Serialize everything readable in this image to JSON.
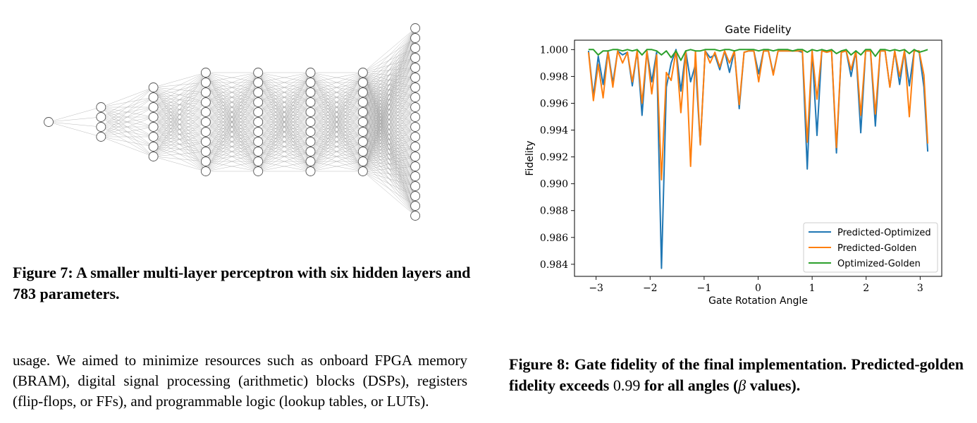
{
  "network_diagram": {
    "layers": [
      1,
      4,
      8,
      11,
      11,
      11,
      11,
      20
    ]
  },
  "figure7": {
    "caption": "Figure 7: A smaller multi-layer perceptron with six hidden layers and 783 parameters."
  },
  "body_text": "usage. We aimed to minimize resources such as onboard FPGA memory (BRAM), digital signal processing (arithmetic) blocks (DSPs), registers (flip-flops, or FFs), and programmable logic (lookup tables, or LUTs).",
  "figure8": {
    "caption_part1": "Figure 8: Gate fidelity of the final implementation. Predicted-golden fidelity exceeds ",
    "caption_value": "0.99",
    "caption_part2": " for all angles (",
    "caption_symbol": "β",
    "caption_part3": " values)."
  },
  "chart_data": {
    "type": "line",
    "title": "Gate Fidelity",
    "xlabel": "Gate Rotation Angle",
    "ylabel": "Fidelity",
    "xlim": [
      -3.4,
      3.4
    ],
    "ylim": [
      0.9831,
      1.0007
    ],
    "xticks": [
      -3,
      -2,
      -1,
      0,
      1,
      2,
      3
    ],
    "xtick_labels": [
      "−3",
      "−2",
      "−1",
      "0",
      "1",
      "2",
      "3"
    ],
    "yticks": [
      0.984,
      0.986,
      0.988,
      0.99,
      0.992,
      0.994,
      0.996,
      0.998,
      1.0
    ],
    "ytick_labels": [
      "0.984",
      "0.986",
      "0.988",
      "0.990",
      "0.992",
      "0.994",
      "0.996",
      "0.998",
      "1.000"
    ],
    "legend_position": "lower-right",
    "x": [
      -3.14,
      -3.05,
      -2.96,
      -2.87,
      -2.78,
      -2.69,
      -2.6,
      -2.51,
      -2.42,
      -2.33,
      -2.24,
      -2.15,
      -2.06,
      -1.97,
      -1.88,
      -1.79,
      -1.7,
      -1.61,
      -1.52,
      -1.43,
      -1.34,
      -1.25,
      -1.16,
      -1.07,
      -0.98,
      -0.89,
      -0.8,
      -0.71,
      -0.62,
      -0.53,
      -0.44,
      -0.35,
      -0.26,
      -0.17,
      -0.08,
      0.01,
      0.1,
      0.19,
      0.28,
      0.37,
      0.46,
      0.55,
      0.64,
      0.73,
      0.82,
      0.91,
      1.0,
      1.09,
      1.18,
      1.27,
      1.36,
      1.45,
      1.54,
      1.63,
      1.72,
      1.81,
      1.9,
      1.99,
      2.08,
      2.17,
      2.26,
      2.35,
      2.44,
      2.53,
      2.62,
      2.71,
      2.8,
      2.89,
      2.98,
      3.07,
      3.14
    ],
    "series": [
      {
        "name": "Predicted-Optimized",
        "color": "#1f77b4",
        "values": [
          0.9999,
          0.9965,
          0.9995,
          0.9974,
          0.9999,
          0.9975,
          0.9999,
          0.9996,
          0.9998,
          0.9973,
          0.9999,
          0.9951,
          0.9999,
          0.9976,
          0.9998,
          0.9837,
          0.9972,
          0.999,
          1.0,
          0.9969,
          0.9999,
          0.9976,
          0.9989,
          0.9929,
          0.9999,
          0.9994,
          0.9996,
          0.9985,
          0.9999,
          0.9983,
          0.9999,
          0.9956,
          0.9998,
          0.9999,
          0.9999,
          0.9982,
          0.9999,
          0.9999,
          0.9982,
          0.9999,
          0.9999,
          0.9999,
          0.9999,
          0.9999,
          0.9998,
          0.9911,
          0.9999,
          0.9936,
          1.0,
          0.9998,
          0.9999,
          0.9923,
          0.9998,
          0.9999,
          0.998,
          0.9999,
          0.9938,
          0.9999,
          0.9999,
          0.9943,
          0.9999,
          0.9999,
          0.9972,
          0.9999,
          0.9974,
          0.9999,
          0.9973,
          0.9999,
          0.9999,
          0.9972,
          0.9924
        ]
      },
      {
        "name": "Predicted-Golden",
        "color": "#ff7f0e",
        "values": [
          0.9998,
          0.9962,
          0.9989,
          0.9964,
          0.9998,
          0.9972,
          0.9999,
          0.999,
          0.9998,
          0.9976,
          0.9999,
          0.996,
          0.9999,
          0.9967,
          0.9996,
          0.9903,
          0.9983,
          0.9977,
          0.9999,
          0.9953,
          0.9999,
          0.9913,
          0.9999,
          0.9929,
          0.9999,
          0.999,
          0.9998,
          0.9987,
          0.9999,
          0.999,
          0.9999,
          0.9959,
          0.9998,
          0.9999,
          0.9999,
          0.9976,
          0.9999,
          0.9999,
          0.9981,
          0.9999,
          0.9999,
          0.9999,
          0.9999,
          0.9999,
          0.9999,
          0.9931,
          0.9999,
          0.9963,
          0.9999,
          0.9998,
          0.9999,
          0.9927,
          0.9998,
          0.9999,
          0.9985,
          0.9999,
          0.9951,
          0.9999,
          0.9999,
          0.9952,
          0.9999,
          0.9999,
          0.9972,
          0.9999,
          0.998,
          0.9999,
          0.995,
          0.9999,
          0.9999,
          0.9981,
          0.993
        ]
      },
      {
        "name": "Optimized-Golden",
        "color": "#2ca02c",
        "values": [
          1.0,
          1.0,
          0.9996,
          0.9999,
          0.9999,
          1.0,
          1.0,
          0.9999,
          1.0,
          0.9999,
          1.0,
          0.9996,
          1.0,
          1.0,
          0.9999,
          0.9996,
          0.9999,
          0.9994,
          0.9999,
          0.9992,
          0.9999,
          1.0,
          0.9999,
          0.9999,
          1.0,
          1.0,
          1.0,
          0.9999,
          1.0,
          1.0,
          0.9999,
          1.0,
          1.0,
          1.0,
          1.0,
          0.9999,
          1.0,
          1.0,
          0.9999,
          1.0,
          1.0,
          1.0,
          0.9999,
          1.0,
          1.0,
          0.9998,
          1.0,
          0.9999,
          1.0,
          0.9999,
          1.0,
          0.9997,
          0.9999,
          1.0,
          0.9996,
          0.9999,
          0.9996,
          1.0,
          1.0,
          0.9995,
          1.0,
          1.0,
          0.9999,
          1.0,
          0.9999,
          1.0,
          0.9997,
          1.0,
          0.9998,
          0.9999,
          1.0
        ]
      }
    ]
  }
}
